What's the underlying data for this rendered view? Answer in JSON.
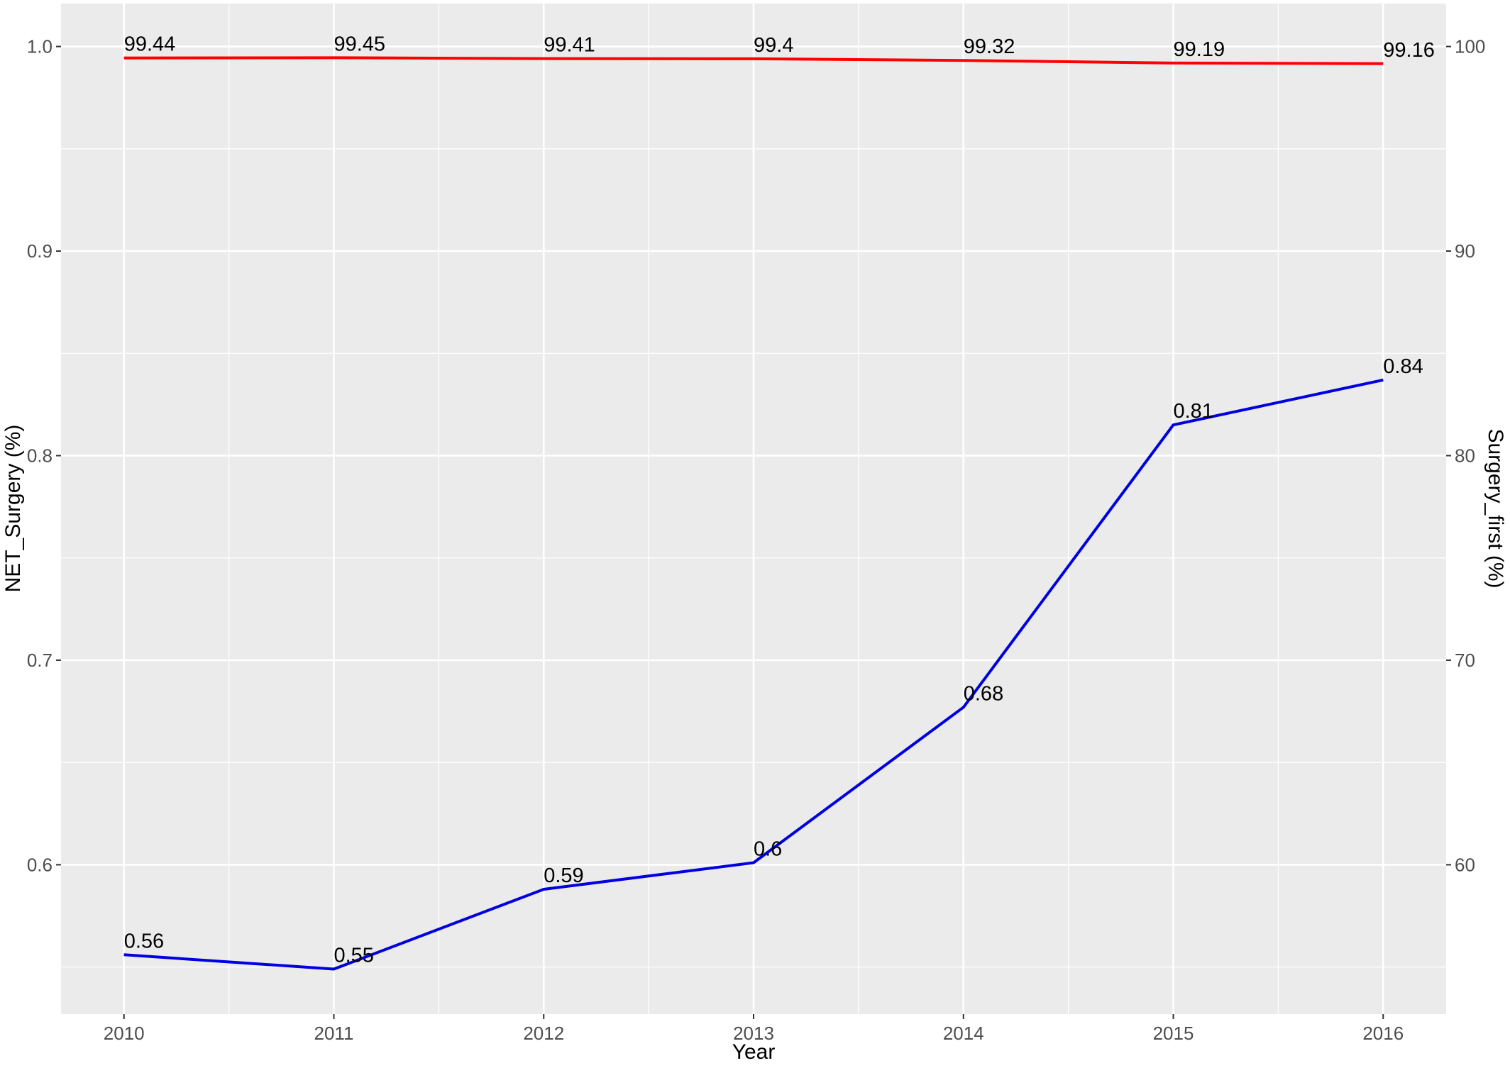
{
  "chart_data": {
    "type": "line",
    "xlabel": "Year",
    "ylabel_left": "NET_Surgery (%)",
    "ylabel_right": "Surgery_first (%)",
    "x": [
      "2010",
      "2011",
      "2012",
      "2013",
      "2014",
      "2015",
      "2016"
    ],
    "x_values": [
      2010,
      2011,
      2012,
      2013,
      2014,
      2015,
      2016
    ],
    "xlim": [
      2009.7,
      2016.3
    ],
    "ylim_left": [
      0.527,
      1.021
    ],
    "ylim_right": [
      52.7,
      102.1
    ],
    "left_ticks": [
      {
        "value": 0.6,
        "label": "0.6"
      },
      {
        "value": 0.7,
        "label": "0.7"
      },
      {
        "value": 0.8,
        "label": "0.8"
      },
      {
        "value": 0.9,
        "label": "0.9"
      },
      {
        "value": 1.0,
        "label": "1.0"
      }
    ],
    "right_ticks": [
      {
        "value": 60,
        "label": "60"
      },
      {
        "value": 70,
        "label": "70"
      },
      {
        "value": 80,
        "label": "80"
      },
      {
        "value": 90,
        "label": "90"
      },
      {
        "value": 100,
        "label": "100"
      }
    ],
    "grid": true,
    "background": "#ebebeb",
    "series": [
      {
        "axis": "right",
        "color": "#ff0000",
        "values": [
          99.44,
          99.45,
          99.41,
          99.4,
          99.32,
          99.19,
          99.16
        ],
        "labels": [
          "99.44",
          "99.45",
          "99.41",
          "99.4",
          "99.32",
          "99.19",
          "99.16"
        ]
      },
      {
        "axis": "left",
        "color": "#0000e0",
        "values": [
          0.556,
          0.549,
          0.588,
          0.601,
          0.677,
          0.815,
          0.837
        ],
        "labels": [
          "0.56",
          "0.55",
          "0.59",
          "0.6",
          "0.68",
          "0.81",
          "0.84"
        ]
      }
    ]
  }
}
